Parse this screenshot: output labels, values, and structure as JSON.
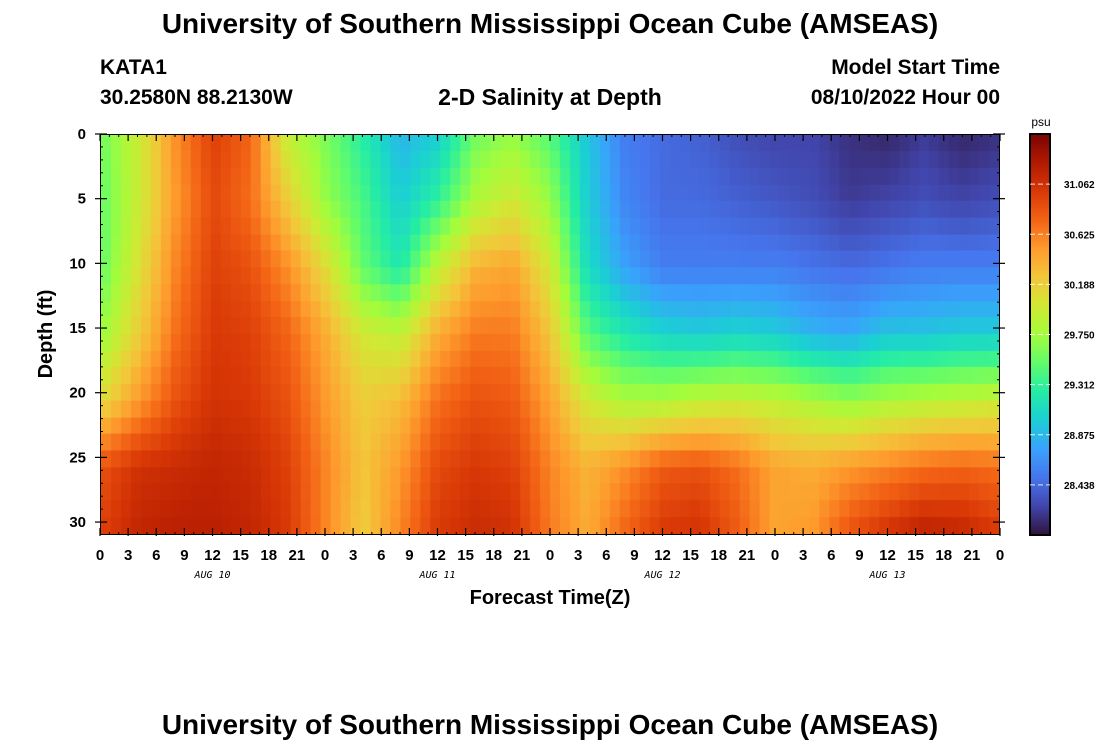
{
  "header": {
    "title": "University of Southern Mississippi Ocean Cube (AMSEAS)",
    "station_id": "KATA1",
    "station_coords": "30.2580N  88.2130W",
    "subtitle": "2-D Salinity at Depth",
    "model_start_label": "Model Start Time",
    "model_start_value": "08/10/2022 Hour 00"
  },
  "footer": {
    "title_repeat": "University of Southern Mississippi Ocean Cube (AMSEAS)"
  },
  "chart_data": {
    "type": "heatmap",
    "xlabel": "Forecast Time(Z)",
    "ylabel": "Depth (ft)",
    "x_tick_labels": [
      "0",
      "3",
      "6",
      "9",
      "12",
      "15",
      "18",
      "21",
      "0",
      "3",
      "6",
      "9",
      "12",
      "15",
      "18",
      "21",
      "0",
      "3",
      "6",
      "9",
      "12",
      "15",
      "18",
      "21",
      "0",
      "3",
      "6",
      "9",
      "12",
      "15",
      "18",
      "21",
      "0"
    ],
    "x_range_hours": [
      0,
      96
    ],
    "day_labels": [
      "AUG 10",
      "AUG 11",
      "AUG 12",
      "AUG 13"
    ],
    "y_tick_labels": [
      "0",
      "5",
      "10",
      "15",
      "20",
      "25",
      "30"
    ],
    "y_range_ft": [
      0,
      31
    ],
    "colorbar": {
      "unit": "psu",
      "range": [
        28.0,
        31.5
      ],
      "tick_labels": [
        "31.062",
        "30.625",
        "30.188",
        "29.750",
        "29.312",
        "28.875",
        "28.438"
      ],
      "tick_values": [
        31.062,
        30.625,
        30.188,
        29.75,
        29.312,
        28.875,
        28.438
      ],
      "colormap": "turbo",
      "colors": [
        "#30123b",
        "#4145ab",
        "#4675ed",
        "#39a2fc",
        "#1bcfd4",
        "#24eca6",
        "#61fc6c",
        "#a4fc3b",
        "#d1e834",
        "#f3c63a",
        "#fe9b2d",
        "#f36315",
        "#d93806",
        "#b11901",
        "#7a0402"
      ]
    },
    "salinity_psu": [
      [
        29.55,
        29.95,
        30.55,
        30.95,
        30.75,
        29.9,
        29.6,
        29.25,
        28.85,
        29.0,
        29.55,
        29.7,
        29.45,
        28.95,
        28.55,
        28.45,
        28.4,
        28.3,
        28.25,
        28.25,
        28.15,
        28.1,
        28.2,
        28.1,
        28.15
      ],
      [
        29.5,
        29.95,
        30.5,
        30.9,
        30.7,
        30.2,
        29.7,
        29.4,
        29.0,
        29.3,
        29.8,
        30.0,
        29.7,
        29.0,
        28.6,
        28.45,
        28.45,
        28.4,
        28.35,
        28.3,
        28.2,
        28.25,
        28.3,
        28.25,
        28.3
      ],
      [
        29.5,
        30.05,
        30.6,
        30.95,
        30.85,
        30.55,
        30.1,
        29.5,
        29.2,
        29.9,
        30.35,
        30.45,
        30.0,
        29.1,
        28.75,
        28.55,
        28.55,
        28.55,
        28.55,
        28.5,
        28.45,
        28.5,
        28.55,
        28.55,
        28.55
      ],
      [
        29.7,
        30.2,
        30.7,
        31.0,
        30.95,
        30.75,
        30.4,
        30.0,
        29.9,
        30.4,
        30.65,
        30.65,
        30.25,
        29.45,
        29.2,
        29.05,
        29.0,
        29.05,
        29.0,
        28.85,
        28.8,
        28.95,
        28.95,
        29.0,
        29.0
      ],
      [
        30.1,
        30.5,
        30.85,
        31.05,
        31.0,
        30.85,
        30.5,
        30.2,
        30.3,
        30.7,
        30.85,
        30.8,
        30.45,
        30.0,
        29.8,
        29.8,
        29.9,
        29.95,
        29.9,
        29.8,
        29.7,
        29.8,
        29.85,
        29.9,
        29.95
      ],
      [
        30.85,
        31.05,
        31.1,
        31.15,
        31.1,
        30.95,
        30.6,
        30.25,
        30.5,
        30.9,
        31.0,
        30.95,
        30.6,
        30.35,
        30.55,
        30.8,
        30.85,
        30.7,
        30.45,
        30.4,
        30.5,
        30.6,
        30.7,
        30.75,
        30.7
      ],
      [
        30.95,
        31.15,
        31.2,
        31.2,
        31.15,
        31.0,
        30.6,
        30.2,
        30.6,
        31.0,
        31.1,
        31.05,
        30.65,
        30.4,
        30.75,
        31.0,
        31.05,
        30.8,
        30.45,
        30.5,
        30.85,
        31.05,
        31.2,
        31.15,
        31.0
      ]
    ]
  }
}
